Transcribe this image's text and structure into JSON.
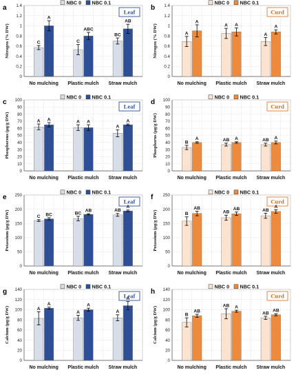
{
  "colors": {
    "leaf_nbc0": "#d8dee8",
    "leaf_nbc01": "#2e4f96",
    "curd_nbc0": "#fce3d0",
    "curd_nbc01": "#ee8a3c",
    "leaf_tag_text": "#2e4f96",
    "curd_tag_text": "#d86a1c",
    "leaf_tag_border": "#2e4f96",
    "curd_tag_border": "#e07a30",
    "error_bar": "#000000",
    "grid": "#c9c9c9"
  },
  "chart_data": [
    {
      "id": "a",
      "type": "bar",
      "label": "a",
      "tag": "Leaf",
      "tissue": "leaf",
      "ylabel": "Nitrogen (% DW)",
      "ylim": [
        0,
        1.4
      ],
      "yticks": [
        "0",
        "0.2",
        "0.4",
        "0.6",
        "0.8",
        "1",
        "1.2",
        "1.4"
      ],
      "categories": [
        "No mulching",
        "Plastic mulch",
        "Straw mulch"
      ],
      "series": [
        {
          "name": "NBC 0",
          "values": [
            0.57,
            0.53,
            0.7
          ],
          "errors": [
            0.04,
            0.1,
            0.06
          ],
          "letters": [
            "C",
            "C",
            "BC"
          ]
        },
        {
          "name": "NBC 0.1",
          "values": [
            1.0,
            0.8,
            0.94
          ],
          "errors": [
            0.1,
            0.07,
            0.09
          ],
          "letters": [
            "A",
            "ABC",
            "AB"
          ]
        }
      ]
    },
    {
      "id": "b",
      "type": "bar",
      "label": "b",
      "tag": "Curd",
      "tissue": "curd",
      "ylabel": "Nitrogen (% DW)",
      "ylim": [
        0,
        1.4
      ],
      "yticks": [
        "0",
        "0.2",
        "0.4",
        "0.6",
        "0.8",
        "1",
        "1.2",
        "1.4"
      ],
      "categories": [
        "No mulching",
        "Plastic mulch",
        "Straw mulch"
      ],
      "series": [
        {
          "name": "NBC 0",
          "values": [
            0.69,
            0.85,
            0.69
          ],
          "errors": [
            0.1,
            0.1,
            0.08
          ],
          "letters": [
            "A",
            "A",
            "A"
          ]
        },
        {
          "name": "NBC 0.1",
          "values": [
            0.9,
            0.88,
            0.88
          ],
          "errors": [
            0.12,
            0.08,
            0.04
          ],
          "letters": [
            "A",
            "A",
            "A"
          ]
        }
      ]
    },
    {
      "id": "c",
      "type": "bar",
      "label": "c",
      "tag": "Leaf",
      "tissue": "leaf",
      "ylabel": "Phosphorous (µg/g DW)",
      "ylim": [
        0,
        100
      ],
      "yticks": [
        "0",
        "10",
        "20",
        "30",
        "40",
        "50",
        "60",
        "70",
        "80",
        "90",
        "100"
      ],
      "categories": [
        "No mulching",
        "Plastic mulch",
        "Straw mulch"
      ],
      "series": [
        {
          "name": "NBC 0",
          "values": [
            62,
            61,
            53
          ],
          "errors": [
            4,
            4,
            5
          ],
          "letters": [
            "A",
            "A",
            "A"
          ]
        },
        {
          "name": "NBC 0.1",
          "values": [
            65,
            61,
            65
          ],
          "errors": [
            3,
            4,
            1
          ],
          "letters": [
            "A",
            "A",
            "A"
          ]
        }
      ]
    },
    {
      "id": "d",
      "type": "bar",
      "label": "d",
      "tag": "Curd",
      "tissue": "curd",
      "ylabel": "Phosphorus (µg/g DW)",
      "ylim": [
        0,
        100
      ],
      "yticks": [
        "0",
        "10",
        "20",
        "30",
        "40",
        "50",
        "60",
        "70",
        "80",
        "90",
        "100"
      ],
      "categories": [
        "No mulching",
        "Plastic mulch",
        "Straw mulch"
      ],
      "series": [
        {
          "name": "NBC 0",
          "values": [
            33,
            37,
            37
          ],
          "errors": [
            3,
            2,
            2
          ],
          "letters": [
            "B",
            "AB",
            "AB"
          ]
        },
        {
          "name": "NBC 0.1",
          "values": [
            40,
            40,
            40
          ],
          "errors": [
            1,
            1,
            2
          ],
          "letters": [
            "A",
            "A",
            "A"
          ]
        }
      ]
    },
    {
      "id": "e",
      "type": "bar",
      "label": "e",
      "tag": "Leaf",
      "tissue": "leaf",
      "ylabel": "Potassium (µg/g DW)",
      "ylim": [
        0,
        250
      ],
      "yticks": [
        "0",
        "50",
        "100",
        "150",
        "200",
        "250"
      ],
      "categories": [
        "No mulching",
        "Plastic mulch",
        "Straw mulch"
      ],
      "series": [
        {
          "name": "NBC 0",
          "values": [
            160,
            167,
            180
          ],
          "errors": [
            3,
            8,
            5
          ],
          "letters": [
            "C",
            "BC",
            "AB"
          ]
        },
        {
          "name": "NBC 0.1",
          "values": [
            166,
            182,
            194
          ],
          "errors": [
            4,
            2,
            3
          ],
          "letters": [
            "BC",
            "AB",
            "A"
          ]
        }
      ]
    },
    {
      "id": "f",
      "type": "bar",
      "label": "f",
      "tag": "Curd",
      "tissue": "curd",
      "ylabel": "Potassium (µg/g DW)",
      "ylim": [
        0,
        250
      ],
      "yticks": [
        "0",
        "50",
        "100",
        "150",
        "200",
        "250"
      ],
      "categories": [
        "No mulching",
        "Plastic mulch",
        "Straw mulch"
      ],
      "series": [
        {
          "name": "NBC 0",
          "values": [
            158,
            170,
            177
          ],
          "errors": [
            15,
            9,
            9
          ],
          "letters": [
            "B",
            "AB",
            "AB"
          ]
        },
        {
          "name": "NBC 0.1",
          "values": [
            185,
            184,
            192
          ],
          "errors": [
            8,
            6,
            6
          ],
          "letters": [
            "AB",
            "AB",
            "A"
          ]
        }
      ]
    },
    {
      "id": "g",
      "type": "bar",
      "label": "g",
      "tag": "Leaf",
      "tissue": "leaf",
      "ylabel": "Calcium (µg/g DW)",
      "ylim": [
        0,
        140
      ],
      "yticks": [
        "0",
        "20",
        "40",
        "60",
        "80",
        "100",
        "120",
        "140"
      ],
      "categories": [
        "No mulching",
        "Plastic mulch",
        "Straw mulch"
      ],
      "series": [
        {
          "name": "NBC 0",
          "values": [
            83,
            84,
            84
          ],
          "errors": [
            13,
            5,
            6
          ],
          "letters": [
            "A",
            "A",
            "A"
          ]
        },
        {
          "name": "NBC 0.1",
          "values": [
            103,
            100,
            108
          ],
          "errors": [
            2,
            3,
            8
          ],
          "letters": [
            "A",
            "A",
            "A"
          ]
        }
      ]
    },
    {
      "id": "h",
      "type": "bar",
      "label": "h",
      "tag": "Curd",
      "tissue": "curd",
      "ylabel": "Calcium (µg/g DW)",
      "ylim": [
        0,
        140
      ],
      "yticks": [
        "0",
        "20",
        "40",
        "60",
        "80",
        "100",
        "120",
        "140"
      ],
      "categories": [
        "No mulching",
        "Plastic mulch",
        "Straw mulch"
      ],
      "series": [
        {
          "name": "NBC 0",
          "values": [
            75,
            92,
            84
          ],
          "errors": [
            9,
            10,
            3
          ],
          "letters": [
            "B",
            "AB",
            "AB"
          ]
        },
        {
          "name": "NBC 0.1",
          "values": [
            88,
            97,
            90
          ],
          "errors": [
            3,
            2,
            2
          ],
          "letters": [
            "AB",
            "A",
            "AB"
          ]
        }
      ]
    }
  ]
}
